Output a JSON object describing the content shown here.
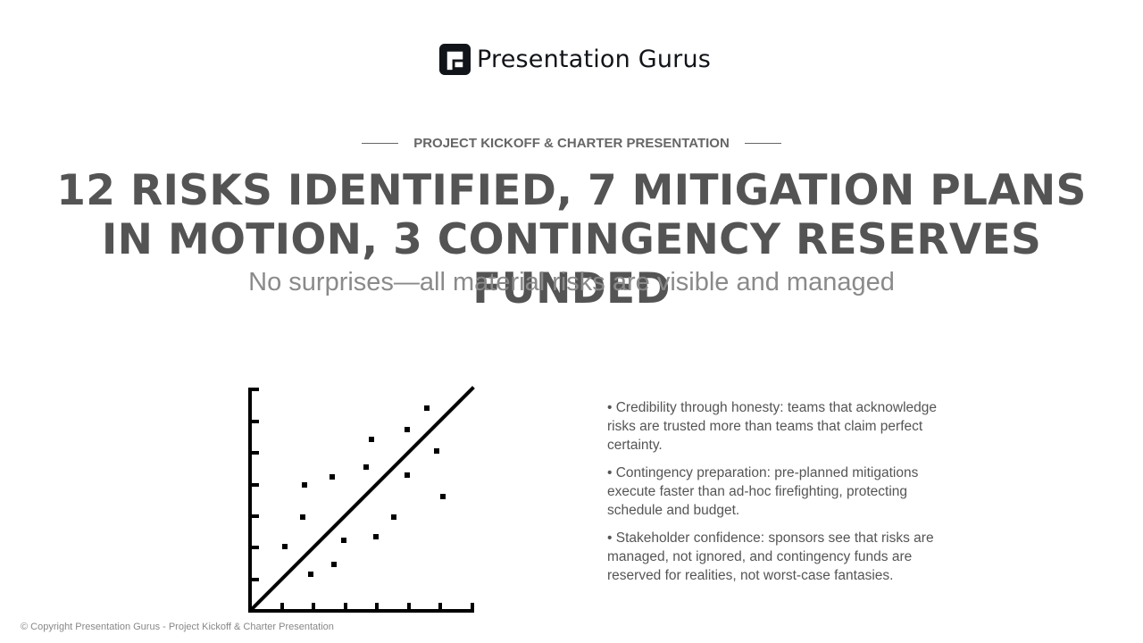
{
  "brand": {
    "name": "Presentation Gurus",
    "logo_icon": "presentation-gurus-logo-mark"
  },
  "slide": {
    "eyebrow": "PROJECT KICKOFF & CHARTER PRESENTATION",
    "headline": "12 RISKS IDENTIFIED, 7 MITIGATION PLANS IN MOTION, 3 CONTINGENCY RESERVES FUNDED",
    "subheadline": "No surprises—all material risks are visible and managed",
    "illustration_icon": "scatter-plot-trendline-icon",
    "bullets": [
      "• Credibility through honesty: teams that acknowledge risks are trusted more than teams that claim perfect certainty.",
      "• Contingency preparation: pre-planned mitigations execute faster than ad-hoc firefighting, protecting schedule and budget.",
      "• Stakeholder confidence: sponsors see that risks are managed, not ignored, and contingency funds are reserved for realities, not worst-case fantasies."
    ]
  },
  "footer": {
    "copyright": "© Copyright Presentation Gurus - Project Kickoff & Charter Presentation"
  },
  "colors": {
    "headline": "#545454",
    "subheadline": "#8a8a8a",
    "eyebrow": "#666666",
    "body_text": "#555555",
    "icon": "#000000"
  }
}
